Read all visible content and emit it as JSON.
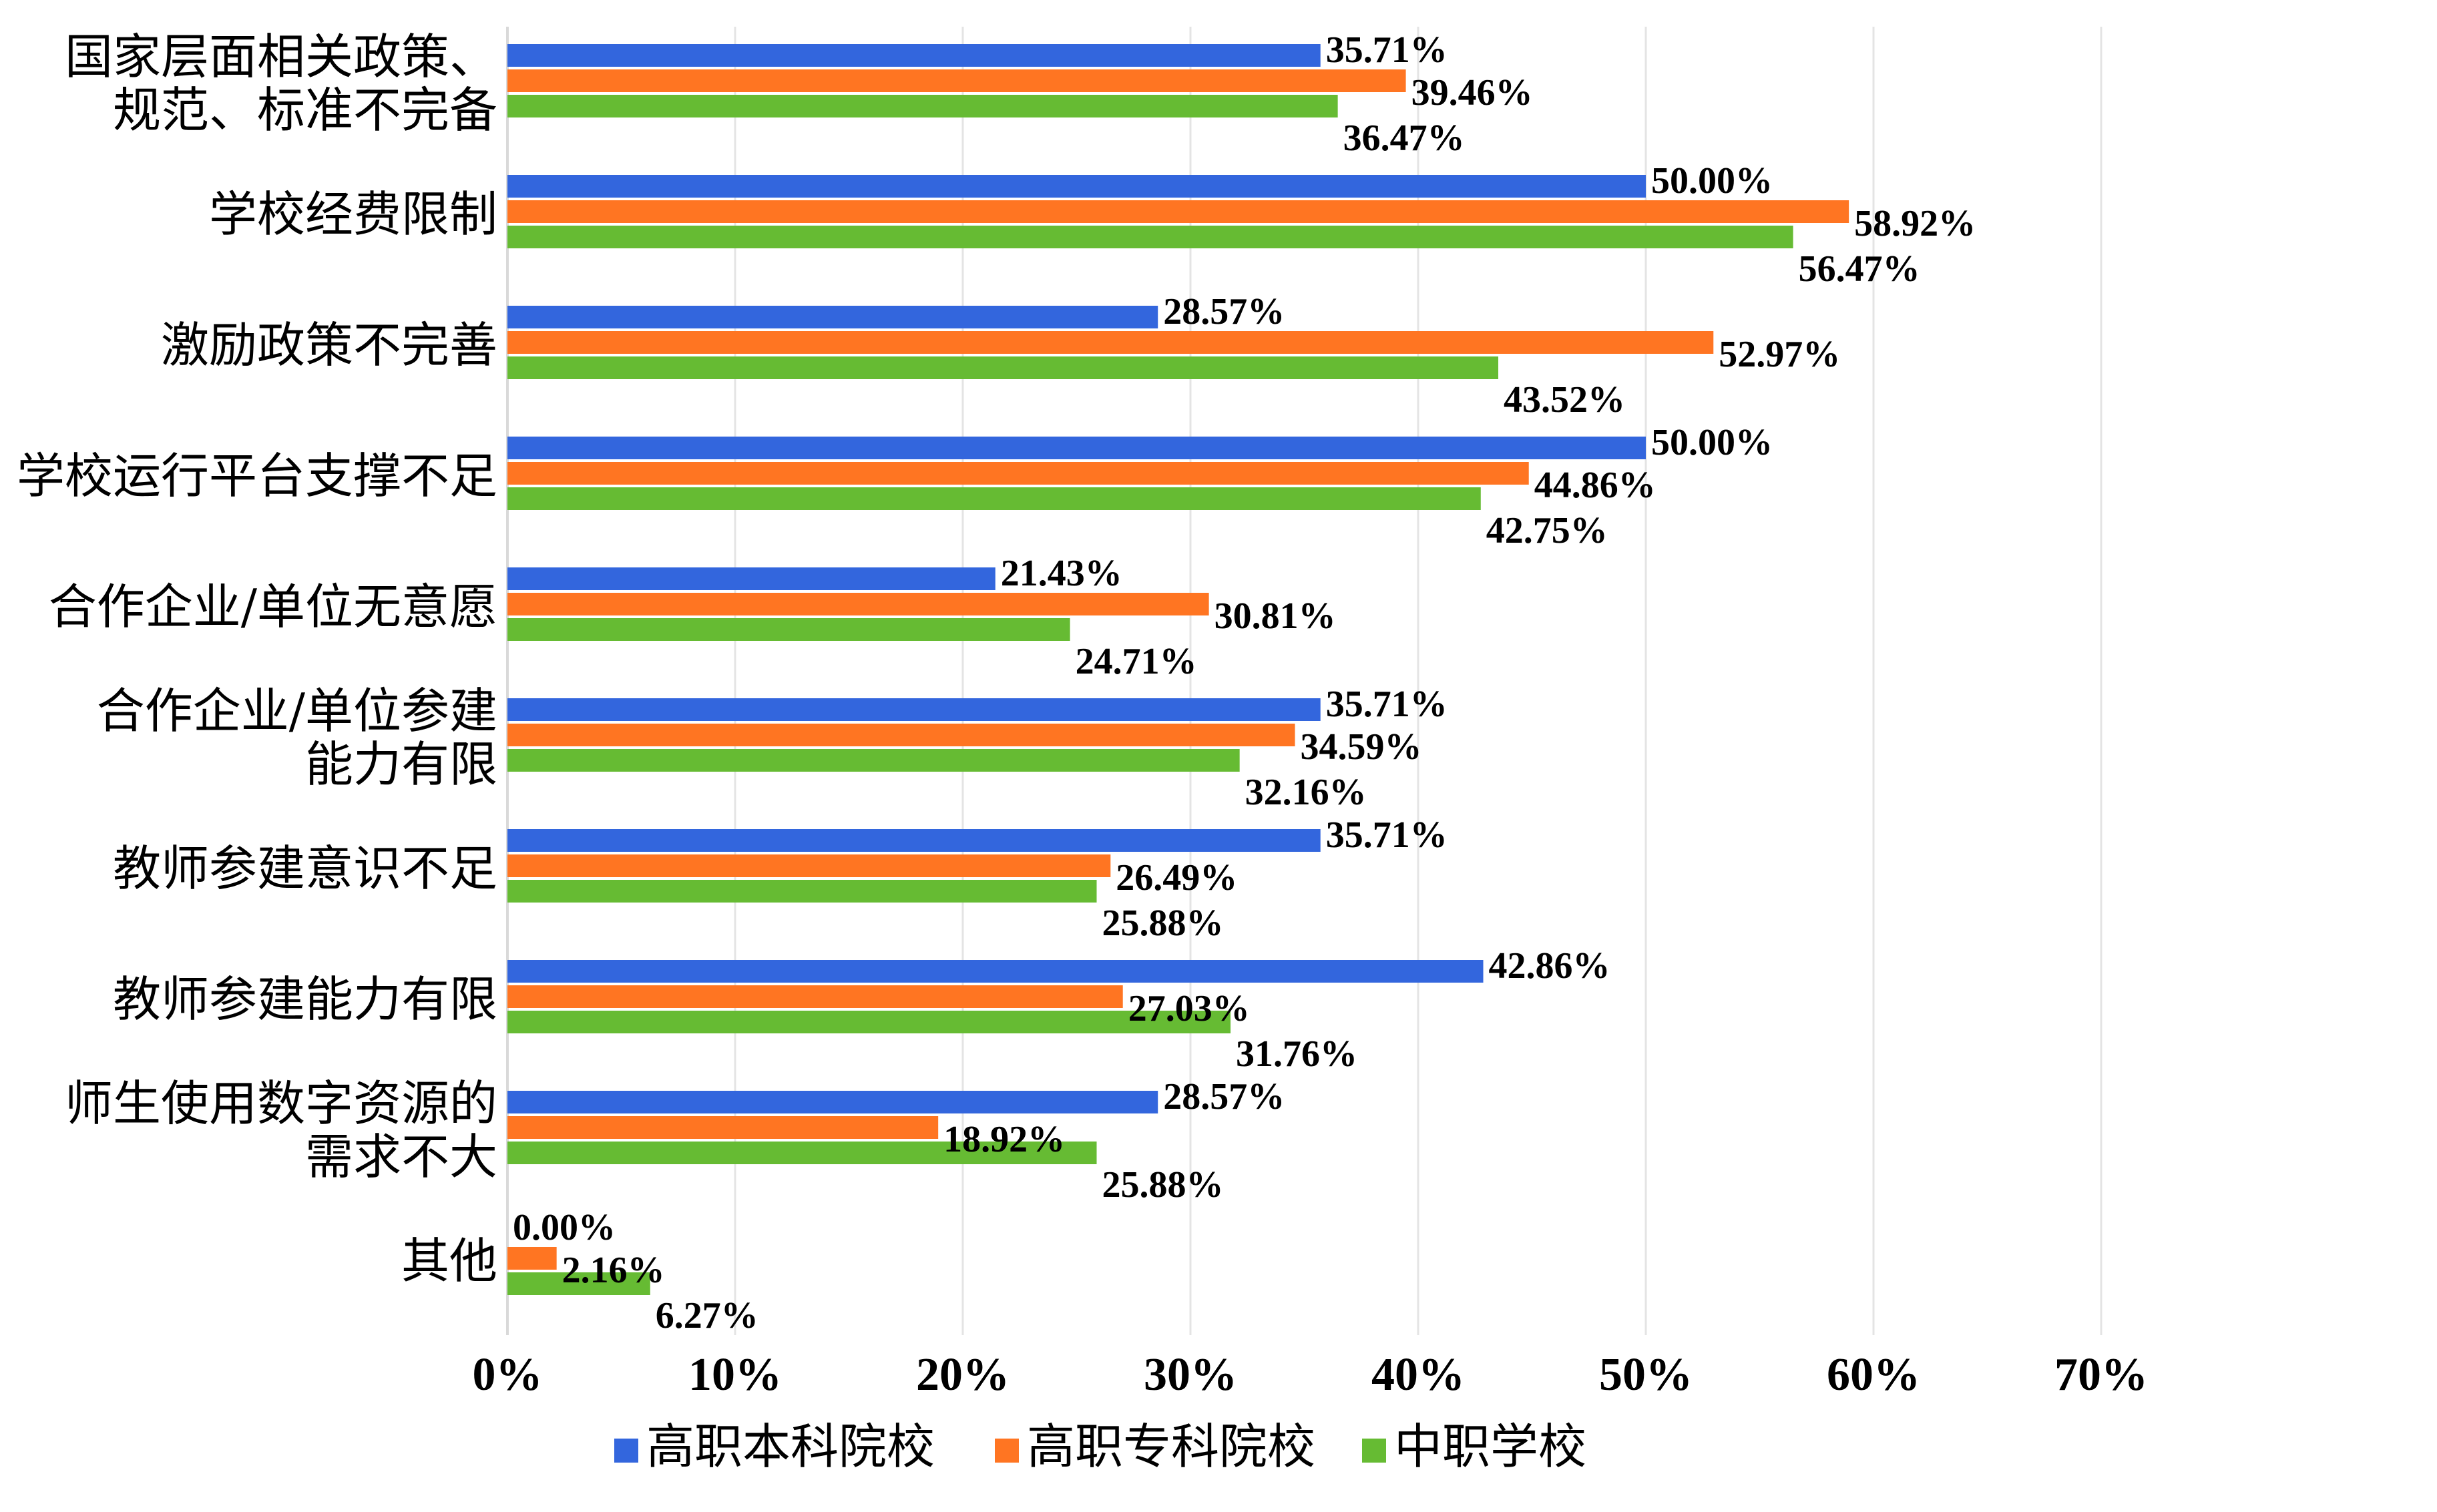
{
  "chart_data": {
    "type": "bar",
    "orientation": "horizontal",
    "categories": [
      [
        "国家层面相关政策、",
        "规范、标准不完备"
      ],
      [
        "学校经费限制"
      ],
      [
        "激励政策不完善"
      ],
      [
        "学校运行平台支撑不足"
      ],
      [
        "合作企业/单位无意愿"
      ],
      [
        "合作企业/单位参建",
        "能力有限"
      ],
      [
        "教师参建意识不足"
      ],
      [
        "教师参建能力有限"
      ],
      [
        "师生使用数字资源的",
        "需求不大"
      ],
      [
        "其他"
      ]
    ],
    "series": [
      {
        "name": "高职本科院校",
        "color": "#3366dd",
        "values": [
          35.71,
          50.0,
          28.57,
          50.0,
          21.43,
          35.71,
          35.71,
          42.86,
          28.57,
          0.0
        ],
        "labels": [
          "35.71%",
          "50.00%",
          "28.57%",
          "50.00%",
          "21.43%",
          "35.71%",
          "35.71%",
          "42.86%",
          "28.57%",
          "0.00%"
        ]
      },
      {
        "name": "高职专科院校",
        "color": "#ff7522",
        "values": [
          39.46,
          58.92,
          52.97,
          44.86,
          30.81,
          34.59,
          26.49,
          27.03,
          18.92,
          2.16
        ],
        "labels": [
          "39.46%",
          "58.92%",
          "52.97%",
          "44.86%",
          "30.81%",
          "34.59%",
          "26.49%",
          "27.03%",
          "18.92%",
          "2.16%"
        ]
      },
      {
        "name": "中职学校",
        "color": "#66bb33",
        "values": [
          36.47,
          56.47,
          43.52,
          42.75,
          24.71,
          32.16,
          25.88,
          31.76,
          25.88,
          6.27
        ],
        "labels": [
          "36.47%",
          "56.47%",
          "43.52%",
          "42.75%",
          "24.71%",
          "32.16%",
          "25.88%",
          "31.76%",
          "25.88%",
          "6.27%"
        ]
      }
    ],
    "xticks": [
      0,
      10,
      20,
      30,
      40,
      50,
      60,
      70
    ],
    "xtick_labels": [
      "0%",
      "10%",
      "20%",
      "30%",
      "40%",
      "50%",
      "60%",
      "70%"
    ],
    "xlim": [
      0,
      70
    ],
    "grid": true,
    "legend": "bottom",
    "title": "",
    "xlabel": "",
    "ylabel": ""
  }
}
